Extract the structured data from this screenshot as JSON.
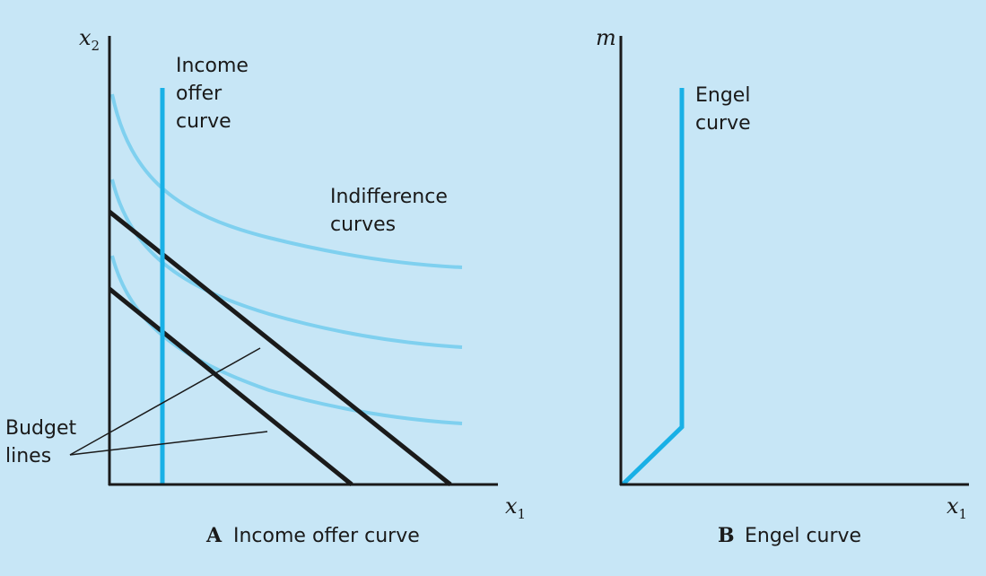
{
  "colors": {
    "background": "#c7e6f6",
    "axis": "#1a1a1a",
    "budget_line": "#1a1a1a",
    "indifference_curve": "#7fd0ef",
    "highlight_curve": "#19b0e6"
  },
  "panel_a": {
    "caption_letter": "A",
    "caption_text": "Income offer curve",
    "x_axis_label": "x",
    "x_axis_sub": "1",
    "y_axis_label": "x",
    "y_axis_sub": "2",
    "income_offer_label": [
      "Income",
      "offer",
      "curve"
    ],
    "indifference_label": [
      "Indifference",
      "curves"
    ],
    "budget_label": [
      "Budget",
      "lines"
    ]
  },
  "panel_b": {
    "caption_letter": "B",
    "caption_text": "Engel curve",
    "x_axis_label": "x",
    "x_axis_sub": "1",
    "y_axis_label": "m",
    "engel_label": [
      "Engel",
      "curve"
    ]
  }
}
